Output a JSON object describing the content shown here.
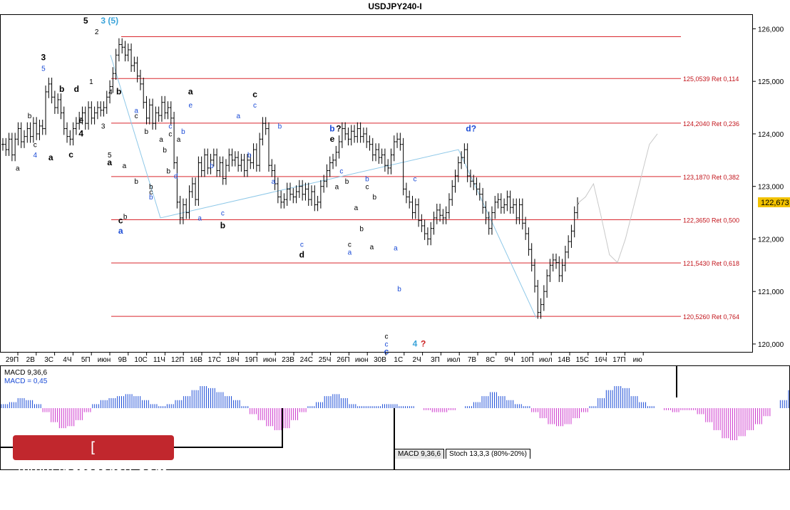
{
  "window": {
    "title": "USDJPY240-I"
  },
  "chart_data": [
    {
      "type": "line",
      "subtype": "ohlc-bars",
      "title": "USDJPY240-I",
      "xlabel": "",
      "ylabel": "",
      "ylim": [
        119.85,
        126.25
      ],
      "grid": false,
      "x_ticks": [
        "29П",
        "2В",
        "3С",
        "4Ч",
        "5П",
        "июн",
        "9В",
        "10С",
        "11Ч",
        "12П",
        "16В",
        "17С",
        "18Ч",
        "19П",
        "июн",
        "23В",
        "24С",
        "25Ч",
        "26П",
        "июн",
        "30В",
        "1С",
        "2Ч",
        "3П",
        "июл",
        "7В",
        "8С",
        "9Ч",
        "10П",
        "июл",
        "14В",
        "15С",
        "16Ч",
        "17П",
        "ию"
      ],
      "y_ticks": [
        "126,000",
        "125,000",
        "124,000",
        "123,000",
        "122,000",
        "121,000",
        "120,000"
      ],
      "current_price": "122,673",
      "series": [
        {
          "values": [
            123.8,
            123.7,
            123.9,
            123.6,
            123.9,
            124.1,
            123.85,
            123.95,
            124.1,
            123.95,
            124.2,
            124.0,
            124.15,
            124.1,
            124.8,
            124.95,
            124.7,
            124.5,
            124.65,
            124.4,
            124.1,
            123.95,
            123.9,
            124.1,
            124.2,
            124.3,
            124.4,
            124.2,
            124.5,
            124.3,
            124.4,
            124.5,
            124.45,
            124.5,
            124.7,
            124.9,
            125.15,
            125.5,
            125.7,
            125.65,
            125.5,
            125.6,
            125.3,
            125.35,
            125.1,
            124.95,
            124.6,
            124.3,
            124.55,
            124.2,
            124.4,
            124.35,
            124.6,
            124.4,
            124.5,
            124.3,
            123.45,
            122.7,
            122.4,
            122.65,
            122.5,
            122.9,
            123.05,
            122.75,
            123.45,
            123.3,
            123.6,
            123.35,
            123.5,
            123.6,
            123.3,
            123.45,
            123.15,
            123.4,
            123.6,
            123.5,
            123.55,
            123.4,
            123.5,
            123.3,
            123.5,
            123.45,
            123.7,
            123.4,
            123.9,
            124.2,
            124.1,
            123.4,
            123.3,
            123.05,
            122.8,
            122.7,
            122.75,
            122.95,
            122.85,
            122.8,
            122.9,
            123.0,
            122.85,
            122.95,
            122.75,
            122.9,
            122.65,
            122.7,
            123.0,
            123.1,
            123.3,
            123.45,
            123.5,
            123.65,
            123.85,
            124.1,
            124.0,
            123.9,
            124.05,
            123.95,
            124.1,
            123.95,
            124.0,
            123.85,
            123.8,
            123.6,
            123.7,
            123.55,
            123.6,
            123.4,
            123.35,
            123.6,
            123.85,
            123.9,
            123.8,
            122.95,
            122.8,
            122.7,
            122.5,
            122.65,
            122.35,
            122.25,
            122.1,
            122.0,
            122.2,
            122.4,
            122.55,
            122.45,
            122.4,
            122.5,
            122.75,
            123.0,
            123.2,
            123.45,
            123.55,
            123.7,
            123.2,
            123.1,
            123.05,
            122.95,
            122.85,
            122.6,
            122.4,
            122.2,
            122.5,
            122.7,
            122.75,
            122.6,
            122.65,
            122.8,
            122.6,
            122.65,
            122.4,
            122.65,
            122.3,
            122.1,
            121.8,
            121.5,
            121.1,
            120.6,
            120.75,
            121.0,
            121.3,
            121.5,
            121.6,
            121.55,
            121.3,
            121.5,
            121.75,
            121.95,
            122.15,
            122.5,
            122.673
          ]
        },
        {
          "values": [
            122.673,
            122.8,
            123.05,
            122.4,
            121.7,
            121.55,
            122.0,
            122.6,
            123.2,
            123.8,
            124.0
          ]
        },
        {
          "values": [
            0.1,
            0.15,
            0.25,
            0.2,
            0.1,
            -0.1,
            -0.35,
            -0.5,
            -0.45,
            -0.3,
            -0.1,
            0.1,
            0.2,
            0.25,
            0.3,
            0.35,
            0.3,
            0.2,
            0.1,
            0.05,
            0.1,
            0.2,
            0.3,
            0.45,
            0.55,
            0.5,
            0.4,
            0.3,
            0.2,
            0.05,
            -0.15,
            -0.3,
            -0.45,
            -0.55,
            -0.5,
            -0.3,
            -0.1,
            0.05,
            0.15,
            0.3,
            0.35,
            0.25,
            0.1,
            0.05,
            0.05,
            0.05,
            0.1,
            0.1,
            0.05,
            0.05,
            0.0,
            -0.05,
            -0.1,
            -0.1,
            -0.05,
            0.0,
            0.05,
            0.15,
            0.3,
            0.4,
            0.3,
            0.2,
            0.1,
            0.05,
            -0.1,
            -0.25,
            -0.4,
            -0.45,
            -0.4,
            -0.25,
            -0.1,
            0.05,
            0.25,
            0.45,
            0.55,
            0.5,
            0.3,
            0.15,
            0.05,
            0.0,
            -0.05,
            -0.1,
            -0.05,
            -0.05,
            -0.15,
            -0.35,
            -0.55,
            -0.75,
            -0.8,
            -0.7,
            -0.55,
            -0.4,
            -0.2,
            0.0,
            0.2,
            0.45
          ]
        }
      ],
      "levels": [
        {
          "price": 125.85,
          "label": ""
        },
        {
          "price": 125.0539,
          "label": "125,0539 Ret 0,114"
        },
        {
          "price": 124.204,
          "label": "124,2040 Ret 0,236"
        },
        {
          "price": 123.187,
          "label": "123,1870 Ret 0,382"
        },
        {
          "price": 122.365,
          "label": "122,3650 Ret 0,500"
        },
        {
          "price": 121.543,
          "label": "121,5430 Ret 0,618"
        },
        {
          "price": 120.526,
          "label": "120,5260 Ret 0,764"
        }
      ],
      "annotations": [
        {
          "text": "5",
          "color": "#000000",
          "bold": true,
          "x": 4,
          "y": 126.1
        },
        {
          "text": "3 (5)",
          "color": "#3aa3d9",
          "bold": true,
          "x": 5.3,
          "y": 126.1
        },
        {
          "text": "2",
          "color": "#000000",
          "bold": false,
          "x": 4.6,
          "y": 125.9
        },
        {
          "text": "1",
          "color": "#000000",
          "bold": false,
          "x": 4.3,
          "y": 124.95
        },
        {
          "text": "3",
          "color": "#000000",
          "bold": true,
          "x": 1.7,
          "y": 125.4
        },
        {
          "text": "5",
          "color": "#1a4bd6",
          "bold": false,
          "x": 1.7,
          "y": 125.2
        },
        {
          "text": "a",
          "color": "#000000",
          "bold": false,
          "x": 0.3,
          "y": 123.3
        },
        {
          "text": "b",
          "color": "#000000",
          "bold": false,
          "x": 0.95,
          "y": 124.3
        },
        {
          "text": "c",
          "color": "#000000",
          "bold": false,
          "x": 1.25,
          "y": 123.75
        },
        {
          "text": "4",
          "color": "#1a4bd6",
          "bold": false,
          "x": 1.25,
          "y": 123.55
        },
        {
          "text": "a",
          "color": "#000000",
          "bold": true,
          "x": 2.1,
          "y": 123.5
        },
        {
          "text": "b",
          "color": "#000000",
          "bold": true,
          "x": 2.7,
          "y": 124.8
        },
        {
          "text": "c",
          "color": "#000000",
          "bold": true,
          "x": 3.2,
          "y": 123.55
        },
        {
          "text": "d",
          "color": "#000000",
          "bold": true,
          "x": 3.5,
          "y": 124.8
        },
        {
          "text": "e",
          "color": "#000000",
          "bold": true,
          "x": 3.75,
          "y": 124.2
        },
        {
          "text": "4",
          "color": "#000000",
          "bold": true,
          "x": 3.75,
          "y": 123.95
        },
        {
          "text": "3",
          "color": "#000000",
          "bold": false,
          "x": 4.95,
          "y": 124.1
        },
        {
          "text": "4",
          "color": "#000000",
          "bold": false,
          "x": 5.35,
          "y": 124.75
        },
        {
          "text": "5",
          "color": "#000000",
          "bold": false,
          "x": 5.3,
          "y": 123.55
        },
        {
          "text": "a",
          "color": "#000000",
          "bold": true,
          "x": 5.3,
          "y": 123.4
        },
        {
          "text": "b",
          "color": "#000000",
          "bold": true,
          "x": 5.8,
          "y": 124.75
        },
        {
          "text": "a",
          "color": "#000000",
          "bold": false,
          "x": 6.1,
          "y": 123.35
        },
        {
          "text": "c",
          "color": "#000000",
          "bold": true,
          "x": 5.9,
          "y": 122.3
        },
        {
          "text": "b",
          "color": "#000000",
          "bold": false,
          "x": 6.15,
          "y": 122.38
        },
        {
          "text": "a",
          "color": "#1a4bd6",
          "bold": true,
          "x": 5.9,
          "y": 122.1
        },
        {
          "text": "a",
          "color": "#1a4bd6",
          "bold": false,
          "x": 6.75,
          "y": 124.4
        },
        {
          "text": "c",
          "color": "#000000",
          "bold": false,
          "x": 6.75,
          "y": 124.3
        },
        {
          "text": "b",
          "color": "#000000",
          "bold": false,
          "x": 6.75,
          "y": 123.05
        },
        {
          "text": "b",
          "color": "#000000",
          "bold": false,
          "x": 7.3,
          "y": 124.0
        },
        {
          "text": "b",
          "color": "#000000",
          "bold": false,
          "x": 7.55,
          "y": 122.95
        },
        {
          "text": "c",
          "color": "#000000",
          "bold": false,
          "x": 7.55,
          "y": 122.85
        },
        {
          "text": "b",
          "color": "#1a4bd6",
          "bold": false,
          "x": 7.55,
          "y": 122.75
        },
        {
          "text": "a",
          "color": "#000000",
          "bold": false,
          "x": 8.1,
          "y": 123.85
        },
        {
          "text": "b",
          "color": "#000000",
          "bold": false,
          "x": 8.3,
          "y": 123.65
        },
        {
          "text": "c",
          "color": "#1a4bd6",
          "bold": false,
          "x": 8.6,
          "y": 124.1
        },
        {
          "text": "c",
          "color": "#000000",
          "bold": false,
          "x": 8.6,
          "y": 123.95
        },
        {
          "text": "b",
          "color": "#000000",
          "bold": false,
          "x": 8.5,
          "y": 123.25
        },
        {
          "text": "d",
          "color": "#1a4bd6",
          "bold": false,
          "x": 8.9,
          "y": 123.15
        },
        {
          "text": "a",
          "color": "#000000",
          "bold": false,
          "x": 9.05,
          "y": 123.85
        },
        {
          "text": "b",
          "color": "#1a4bd6",
          "bold": false,
          "x": 9.3,
          "y": 124.0
        },
        {
          "text": "a",
          "color": "#000000",
          "bold": true,
          "x": 9.7,
          "y": 124.75
        },
        {
          "text": "e",
          "color": "#1a4bd6",
          "bold": false,
          "x": 9.7,
          "y": 124.5
        },
        {
          "text": "b",
          "color": "#1a4bd6",
          "bold": false,
          "x": 10.85,
          "y": 123.35
        },
        {
          "text": "c",
          "color": "#1a4bd6",
          "bold": false,
          "x": 11.45,
          "y": 122.45
        },
        {
          "text": "a",
          "color": "#1a4bd6",
          "bold": false,
          "x": 10.2,
          "y": 122.35
        },
        {
          "text": "b",
          "color": "#000000",
          "bold": true,
          "x": 11.45,
          "y": 122.2
        },
        {
          "text": "a",
          "color": "#1a4bd6",
          "bold": false,
          "x": 12.3,
          "y": 124.3
        },
        {
          "text": "b",
          "color": "#1a4bd6",
          "bold": false,
          "x": 12.9,
          "y": 123.55
        },
        {
          "text": "c",
          "color": "#000000",
          "bold": true,
          "x": 13.2,
          "y": 124.7
        },
        {
          "text": "c",
          "color": "#1a4bd6",
          "bold": false,
          "x": 13.2,
          "y": 124.5
        },
        {
          "text": "b",
          "color": "#1a4bd6",
          "bold": false,
          "x": 14.55,
          "y": 124.1
        },
        {
          "text": "a",
          "color": "#1a4bd6",
          "bold": false,
          "x": 14.2,
          "y": 123.05
        },
        {
          "text": "c",
          "color": "#1a4bd6",
          "bold": false,
          "x": 15.75,
          "y": 121.85
        },
        {
          "text": "d",
          "color": "#000000",
          "bold": true,
          "x": 15.75,
          "y": 121.65
        },
        {
          "text": "b",
          "color": "#1a4bd6",
          "bold": true,
          "x": 17.4,
          "y": 124.05
        },
        {
          "text": "?",
          "color": "#000000",
          "bold": true,
          "x": 17.75,
          "y": 124.05
        },
        {
          "text": "e",
          "color": "#000000",
          "bold": true,
          "x": 17.4,
          "y": 123.85
        },
        {
          "text": "c",
          "color": "#1a4bd6",
          "bold": false,
          "x": 17.9,
          "y": 123.25
        },
        {
          "text": "a",
          "color": "#000000",
          "bold": false,
          "x": 17.65,
          "y": 122.95
        },
        {
          "text": "b",
          "color": "#000000",
          "bold": false,
          "x": 18.2,
          "y": 123.05
        },
        {
          "text": "b",
          "color": "#1a4bd6",
          "bold": false,
          "x": 19.3,
          "y": 123.1
        },
        {
          "text": "c",
          "color": "#000000",
          "bold": false,
          "x": 19.3,
          "y": 122.95
        },
        {
          "text": "b",
          "color": "#000000",
          "bold": false,
          "x": 19.7,
          "y": 122.75
        },
        {
          "text": "a",
          "color": "#000000",
          "bold": false,
          "x": 18.7,
          "y": 122.55
        },
        {
          "text": "b",
          "color": "#000000",
          "bold": false,
          "x": 19.0,
          "y": 122.15
        },
        {
          "text": "c",
          "color": "#000000",
          "bold": false,
          "x": 18.35,
          "y": 121.85
        },
        {
          "text": "a",
          "color": "#1a4bd6",
          "bold": false,
          "x": 18.35,
          "y": 121.7
        },
        {
          "text": "a",
          "color": "#000000",
          "bold": false,
          "x": 19.55,
          "y": 121.8
        },
        {
          "text": "c",
          "color": "#000000",
          "bold": false,
          "x": 20.35,
          "y": 120.1
        },
        {
          "text": "c",
          "color": "#1a4bd6",
          "bold": false,
          "x": 20.35,
          "y": 119.95
        },
        {
          "text": "c",
          "color": "#1a4bd6",
          "bold": true,
          "x": 20.35,
          "y": 119.8
        },
        {
          "text": "a",
          "color": "#1a4bd6",
          "bold": false,
          "x": 20.85,
          "y": 121.78
        },
        {
          "text": "b",
          "color": "#1a4bd6",
          "bold": false,
          "x": 21.05,
          "y": 121.0
        },
        {
          "text": "c",
          "color": "#1a4bd6",
          "bold": false,
          "x": 21.9,
          "y": 123.1
        },
        {
          "text": "4",
          "color": "#3aa3d9",
          "bold": true,
          "x": 21.9,
          "y": 119.95
        },
        {
          "text": "?",
          "color": "#cc2222",
          "bold": true,
          "x": 22.35,
          "y": 119.95
        },
        {
          "text": "d?",
          "color": "#1a4bd6",
          "bold": true,
          "x": 24.95,
          "y": 124.05
        }
      ]
    },
    {
      "type": "bar",
      "title": "MACD 9,36,6",
      "value_label": "MACD = 0,45",
      "ylim": [
        -0.85,
        0.7
      ]
    }
  ],
  "tabs": [
    {
      "label": "MACD 9,36,6"
    },
    {
      "label": "Stoch 13,3,3 (80%-20%)"
    }
  ],
  "watermark": {
    "text": "[ www.instaforex.com ]"
  },
  "colors": {
    "level_line": "#d9282e",
    "level_text": "#c2141b",
    "wave_blue": "#1a4bd6",
    "wave_cyan": "#3aa3d9",
    "projection": "#c8c8c8",
    "channel": "#8ec8e8",
    "macd_pos": "#1a4bd6",
    "macd_neg": "#cc33cc",
    "price_badge": "#f2c200",
    "watermark_bg": "#c1272d"
  }
}
